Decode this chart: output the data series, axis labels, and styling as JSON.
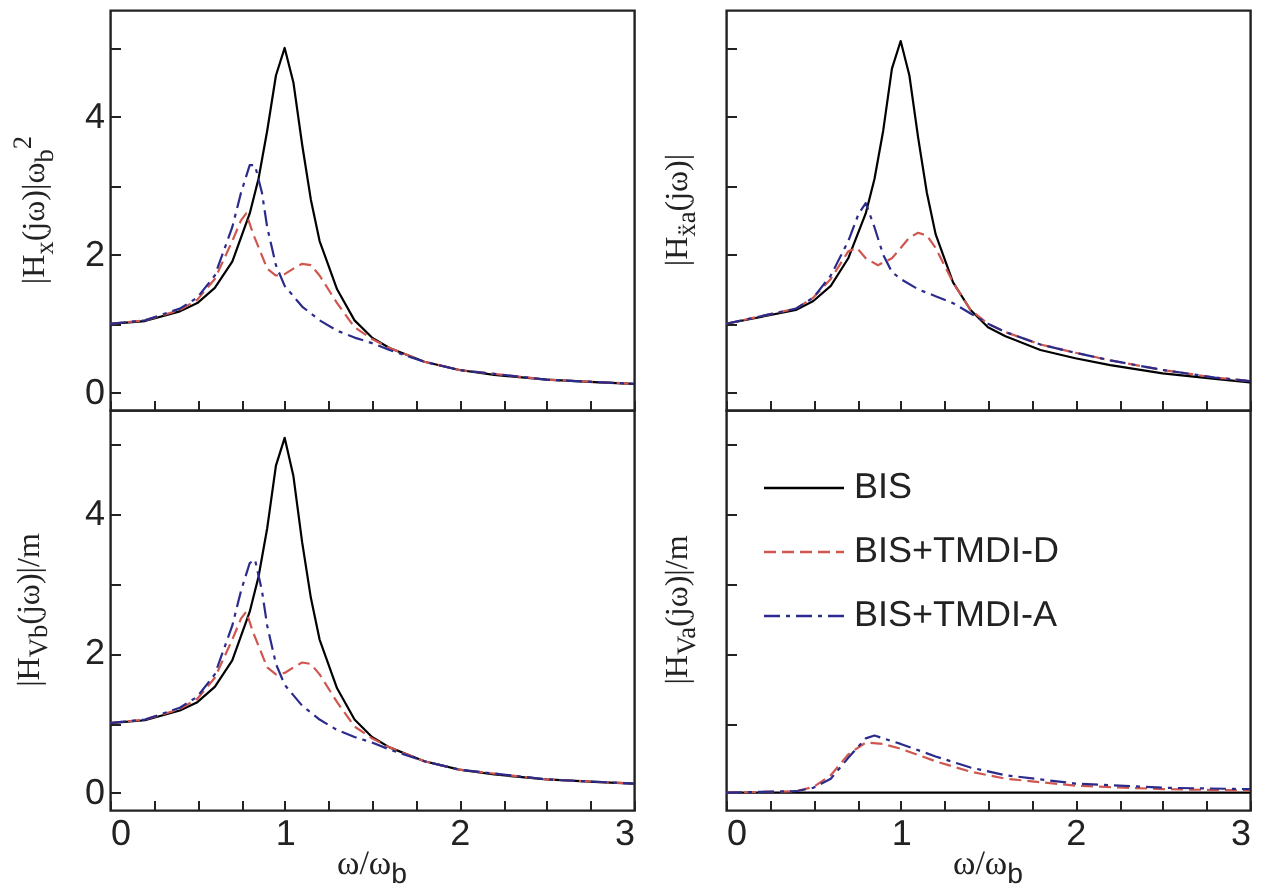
{
  "chart_data": [
    {
      "type": "line",
      "ylabel": "|H$_{x}$(jω)|ω$_{b}$$^{2}$",
      "xlim": [
        0,
        3
      ],
      "ylim": [
        -0.25,
        5.55
      ],
      "tick_labels": "y",
      "xticks": [
        0,
        {
          "value": 0.25,
          "label": null
        },
        {
          "value": 0.5,
          "label": null
        },
        {
          "value": 0.75,
          "label": null
        },
        1,
        {
          "value": 1.25,
          "label": null
        },
        {
          "value": 1.5,
          "label": null
        },
        {
          "value": 1.75,
          "label": null
        },
        2,
        {
          "value": 2.25,
          "label": null
        },
        {
          "value": 2.5,
          "label": null
        },
        {
          "value": 2.75,
          "label": null
        },
        3
      ],
      "yticks": [
        0,
        {
          "value": 1,
          "label": null
        },
        2,
        {
          "value": 3,
          "label": null
        },
        4,
        {
          "value": 5,
          "label": null
        }
      ],
      "series": [
        {
          "color": "#000000",
          "line_style": "solid",
          "x": [
            0,
            0.2,
            0.4,
            0.5,
            0.6,
            0.7,
            0.8,
            0.85,
            0.9,
            0.95,
            1.0,
            1.05,
            1.1,
            1.15,
            1.2,
            1.3,
            1.4,
            1.5,
            1.6,
            1.8,
            2.0,
            2.2,
            2.5,
            2.8,
            3.0
          ],
          "values": [
            1.0,
            1.04,
            1.18,
            1.3,
            1.52,
            1.9,
            2.6,
            3.1,
            3.8,
            4.6,
            5.0,
            4.5,
            3.6,
            2.8,
            2.2,
            1.5,
            1.05,
            0.8,
            0.65,
            0.45,
            0.33,
            0.26,
            0.19,
            0.15,
            0.13
          ]
        },
        {
          "color": "#d0574f",
          "line_style": "dashed",
          "x": [
            0,
            0.2,
            0.4,
            0.5,
            0.6,
            0.7,
            0.75,
            0.78,
            0.82,
            0.9,
            0.95,
            1.0,
            1.05,
            1.1,
            1.15,
            1.2,
            1.3,
            1.4,
            1.5,
            1.6,
            1.8,
            2.0,
            2.5,
            3.0
          ],
          "values": [
            1.0,
            1.05,
            1.2,
            1.35,
            1.65,
            2.2,
            2.5,
            2.6,
            2.3,
            1.8,
            1.7,
            1.72,
            1.8,
            1.87,
            1.85,
            1.7,
            1.3,
            0.95,
            0.78,
            0.65,
            0.45,
            0.33,
            0.19,
            0.13
          ]
        },
        {
          "color": "#2b2b8c",
          "line_style": "dashdot",
          "x": [
            0,
            0.2,
            0.4,
            0.5,
            0.6,
            0.7,
            0.75,
            0.8,
            0.83,
            0.87,
            0.9,
            0.95,
            1.0,
            1.1,
            1.2,
            1.3,
            1.4,
            1.5,
            1.6,
            1.8,
            2.0,
            2.5,
            3.0
          ],
          "values": [
            1.0,
            1.05,
            1.22,
            1.38,
            1.7,
            2.4,
            2.9,
            3.3,
            3.3,
            2.9,
            2.4,
            1.85,
            1.55,
            1.25,
            1.05,
            0.9,
            0.8,
            0.72,
            0.62,
            0.45,
            0.33,
            0.19,
            0.13
          ]
        }
      ]
    },
    {
      "type": "line",
      "ylabel": "|H$_{ẍa}$(jω)|",
      "xlim": [
        0,
        3
      ],
      "ylim": [
        -0.25,
        5.55
      ],
      "tick_labels": false,
      "xticks": [
        0,
        {
          "value": 0.25,
          "label": null
        },
        {
          "value": 0.5,
          "label": null
        },
        {
          "value": 0.75,
          "label": null
        },
        1,
        {
          "value": 1.25,
          "label": null
        },
        {
          "value": 1.5,
          "label": null
        },
        {
          "value": 1.75,
          "label": null
        },
        2,
        {
          "value": 2.25,
          "label": null
        },
        {
          "value": 2.5,
          "label": null
        },
        {
          "value": 2.75,
          "label": null
        },
        3
      ],
      "yticks": [
        0,
        {
          "value": 1,
          "label": null
        },
        2,
        {
          "value": 3,
          "label": null
        },
        4,
        {
          "value": 5,
          "label": null
        }
      ],
      "series": [
        {
          "color": "#000000",
          "line_style": "solid",
          "x": [
            0,
            0.4,
            0.5,
            0.6,
            0.7,
            0.8,
            0.85,
            0.9,
            0.95,
            1.0,
            1.05,
            1.1,
            1.15,
            1.2,
            1.3,
            1.4,
            1.5,
            1.6,
            1.8,
            2.0,
            2.2,
            2.5,
            2.8,
            3.0
          ],
          "values": [
            1.0,
            1.2,
            1.33,
            1.55,
            1.95,
            2.6,
            3.1,
            3.8,
            4.7,
            5.1,
            4.6,
            3.7,
            2.9,
            2.3,
            1.6,
            1.2,
            0.95,
            0.82,
            0.62,
            0.5,
            0.4,
            0.28,
            0.2,
            0.15
          ]
        },
        {
          "color": "#d0574f",
          "line_style": "dashed",
          "x": [
            0,
            0.4,
            0.5,
            0.6,
            0.7,
            0.75,
            0.8,
            0.87,
            0.95,
            1.0,
            1.05,
            1.1,
            1.15,
            1.2,
            1.3,
            1.4,
            1.5,
            1.6,
            1.8,
            2.0,
            2.2,
            2.5,
            2.8,
            3.0
          ],
          "values": [
            1.0,
            1.22,
            1.38,
            1.65,
            2.05,
            2.1,
            1.95,
            1.85,
            1.95,
            2.1,
            2.25,
            2.32,
            2.28,
            2.1,
            1.6,
            1.2,
            1.0,
            0.88,
            0.7,
            0.58,
            0.47,
            0.33,
            0.22,
            0.17
          ]
        },
        {
          "color": "#2b2b8c",
          "line_style": "dashdot",
          "x": [
            0,
            0.4,
            0.5,
            0.6,
            0.7,
            0.76,
            0.8,
            0.85,
            0.9,
            0.95,
            1.0,
            1.1,
            1.2,
            1.3,
            1.4,
            1.5,
            1.6,
            1.8,
            2.0,
            2.2,
            2.5,
            2.8,
            3.0
          ],
          "values": [
            1.0,
            1.22,
            1.38,
            1.7,
            2.2,
            2.6,
            2.75,
            2.4,
            2.0,
            1.75,
            1.65,
            1.5,
            1.4,
            1.3,
            1.15,
            1.0,
            0.88,
            0.7,
            0.58,
            0.47,
            0.33,
            0.22,
            0.17
          ]
        }
      ]
    },
    {
      "type": "line",
      "ylabel": "|H$_{Vb}$(jω)|/m",
      "xlabel": "ω/ω$_{b}$",
      "xlim": [
        0,
        3
      ],
      "ylim": [
        -0.25,
        5.5
      ],
      "xticks": [
        0,
        {
          "value": 0.25,
          "label": null
        },
        {
          "value": 0.5,
          "label": null
        },
        {
          "value": 0.75,
          "label": null
        },
        1,
        {
          "value": 1.25,
          "label": null
        },
        {
          "value": 1.5,
          "label": null
        },
        {
          "value": 1.75,
          "label": null
        },
        2,
        {
          "value": 2.25,
          "label": null
        },
        {
          "value": 2.5,
          "label": null
        },
        {
          "value": 2.75,
          "label": null
        },
        3
      ],
      "yticks": [
        0,
        {
          "value": 1,
          "label": null
        },
        2,
        {
          "value": 3,
          "label": null
        },
        4,
        {
          "value": 5,
          "label": null
        }
      ],
      "series": [
        {
          "color": "#000000",
          "line_style": "solid",
          "x": [
            0,
            0.2,
            0.4,
            0.5,
            0.6,
            0.7,
            0.8,
            0.85,
            0.9,
            0.95,
            1.0,
            1.05,
            1.1,
            1.15,
            1.2,
            1.3,
            1.4,
            1.5,
            1.6,
            1.8,
            2.0,
            2.2,
            2.5,
            2.8,
            3.0
          ],
          "values": [
            1.0,
            1.04,
            1.18,
            1.3,
            1.52,
            1.9,
            2.6,
            3.1,
            3.8,
            4.7,
            5.1,
            4.55,
            3.6,
            2.8,
            2.2,
            1.5,
            1.05,
            0.8,
            0.65,
            0.45,
            0.33,
            0.26,
            0.19,
            0.15,
            0.13
          ]
        },
        {
          "color": "#d0574f",
          "line_style": "dashed",
          "x": [
            0,
            0.2,
            0.4,
            0.5,
            0.6,
            0.7,
            0.75,
            0.78,
            0.82,
            0.9,
            0.95,
            1.0,
            1.05,
            1.1,
            1.15,
            1.2,
            1.3,
            1.4,
            1.5,
            1.6,
            1.8,
            2.0,
            2.5,
            3.0
          ],
          "values": [
            1.0,
            1.05,
            1.2,
            1.35,
            1.65,
            2.2,
            2.5,
            2.6,
            2.3,
            1.8,
            1.7,
            1.72,
            1.8,
            1.87,
            1.85,
            1.7,
            1.3,
            0.95,
            0.78,
            0.65,
            0.45,
            0.33,
            0.19,
            0.13
          ]
        },
        {
          "color": "#2b2b8c",
          "line_style": "dashdot",
          "x": [
            0,
            0.2,
            0.4,
            0.5,
            0.6,
            0.7,
            0.75,
            0.8,
            0.83,
            0.87,
            0.9,
            0.95,
            1.0,
            1.1,
            1.2,
            1.3,
            1.4,
            1.5,
            1.6,
            1.8,
            2.0,
            2.5,
            3.0
          ],
          "values": [
            1.0,
            1.05,
            1.22,
            1.38,
            1.7,
            2.4,
            2.9,
            3.3,
            3.35,
            2.9,
            2.4,
            1.85,
            1.55,
            1.25,
            1.05,
            0.9,
            0.8,
            0.72,
            0.62,
            0.45,
            0.33,
            0.19,
            0.13
          ]
        }
      ]
    },
    {
      "type": "line",
      "ylabel": "|H$_{Va}$(jω)|/m",
      "xlabel": "ω/ω$_{b}$",
      "xlim": [
        0,
        3
      ],
      "ylim": [
        -0.25,
        5.5
      ],
      "tick_labels": "x",
      "legend": "top left",
      "xticks": [
        0,
        {
          "value": 0.25,
          "label": null
        },
        {
          "value": 0.5,
          "label": null
        },
        {
          "value": 0.75,
          "label": null
        },
        1,
        {
          "value": 1.25,
          "label": null
        },
        {
          "value": 1.5,
          "label": null
        },
        {
          "value": 1.75,
          "label": null
        },
        2,
        {
          "value": 2.25,
          "label": null
        },
        {
          "value": 2.5,
          "label": null
        },
        {
          "value": 2.75,
          "label": null
        },
        3
      ],
      "yticks": [
        0,
        {
          "value": 1,
          "label": null
        },
        2,
        {
          "value": 3,
          "label": null
        },
        4,
        {
          "value": 5,
          "label": null
        }
      ],
      "series": [
        {
          "name": "BIS",
          "color": "#000000",
          "line_style": "solid",
          "x": [
            0,
            1.0,
            2.0,
            3.0
          ],
          "values": [
            0,
            0,
            0,
            0
          ]
        },
        {
          "name": "BIS+TMDI-D",
          "color": "#d0574f",
          "line_style": "dashed",
          "x": [
            0,
            0.4,
            0.5,
            0.6,
            0.7,
            0.8,
            0.9,
            1.0,
            1.2,
            1.4,
            1.6,
            2.0,
            2.5,
            3.0
          ],
          "values": [
            0,
            0.02,
            0.08,
            0.25,
            0.55,
            0.72,
            0.7,
            0.63,
            0.45,
            0.3,
            0.2,
            0.1,
            0.05,
            0.03
          ]
        },
        {
          "name": "BIS+TMDI-A",
          "color": "#2b2b8c",
          "line_style": "dashdot",
          "x": [
            0,
            0.4,
            0.5,
            0.6,
            0.7,
            0.8,
            0.85,
            0.9,
            1.0,
            1.2,
            1.4,
            1.6,
            2.0,
            2.5,
            3.0
          ],
          "values": [
            0,
            0.02,
            0.07,
            0.2,
            0.5,
            0.78,
            0.82,
            0.78,
            0.7,
            0.52,
            0.36,
            0.25,
            0.13,
            0.07,
            0.05
          ]
        }
      ]
    }
  ]
}
